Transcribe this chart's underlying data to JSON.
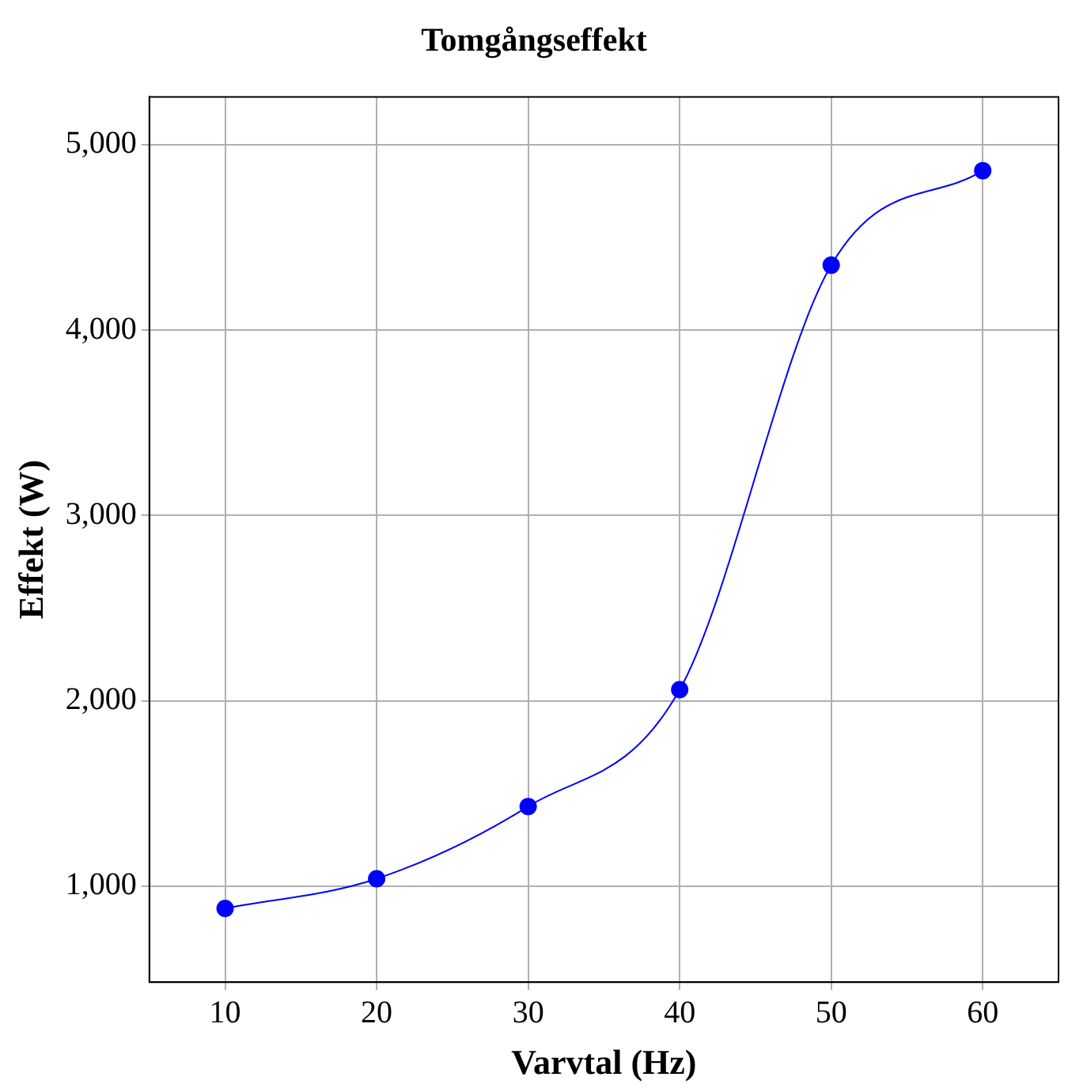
{
  "chart_data": {
    "type": "line",
    "title": "Tomgångseffekt",
    "xlabel": "Varvtal (Hz)",
    "ylabel": "Effekt (W)",
    "x": [
      10,
      20,
      30,
      40,
      50,
      60
    ],
    "series": [
      {
        "color": "#0000ff",
        "values": [
          880,
          1040,
          1430,
          2060,
          4350,
          4860
        ]
      }
    ],
    "xlim": [
      5,
      65
    ],
    "xticks": [
      10,
      20,
      30,
      40,
      50,
      60
    ],
    "ylim": [
      482,
      5258
    ],
    "yticks": [
      {
        "value": 1000,
        "label": "1,000"
      },
      {
        "value": 2000,
        "label": "2,000"
      },
      {
        "value": 3000,
        "label": "3,000"
      },
      {
        "value": 4000,
        "label": "4,000"
      },
      {
        "value": 5000,
        "label": "5,000"
      }
    ],
    "grid": true,
    "legend": false,
    "marker": "circle",
    "line_style": "solid"
  }
}
